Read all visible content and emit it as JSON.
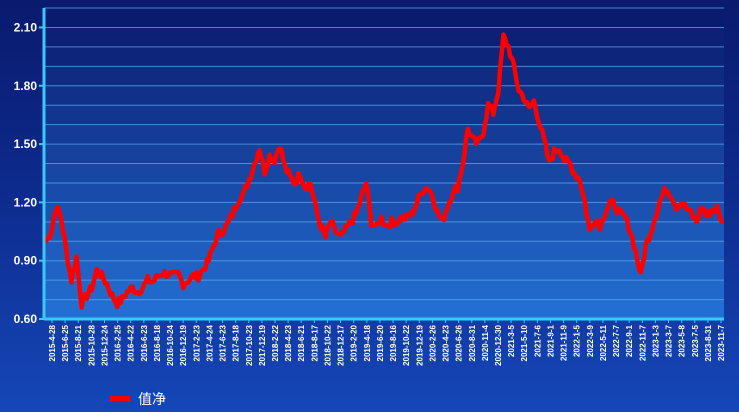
{
  "chart_data": {
    "type": "line",
    "title": "",
    "xlabel": "",
    "ylabel": "",
    "ylim": [
      0.6,
      2.2
    ],
    "yticks": [
      "0.60",
      "0.90",
      "1.20",
      "1.50",
      "1.80",
      "2.10"
    ],
    "xticks": [
      "2015-4-28",
      "2015-6-25",
      "2015-8-21",
      "2015-10-28",
      "2015-12-24",
      "2016-2-25",
      "2016-4-22",
      "2016-6-23",
      "2016-8-18",
      "2016-10-24",
      "2016-12-19",
      "2017-2-23",
      "2017-4-24",
      "2017-6-23",
      "2017-8-18",
      "2017-10-23",
      "2017-12-19",
      "2018-2-22",
      "2018-4-23",
      "2018-6-21",
      "2018-8-17",
      "2018-10-22",
      "2018-12-17",
      "2019-2-20",
      "2019-4-18",
      "2019-6-20",
      "2019-8-16",
      "2019-10-22",
      "2019-12-19",
      "2020-2-26",
      "2020-4-23",
      "2020-6-26",
      "2020-8-31",
      "2020-11-4",
      "2020-12-30",
      "2021-3-5",
      "2021-5-10",
      "2021-7-6",
      "2021-9-1",
      "2021-11-9",
      "2022-1-5",
      "2022-3-9",
      "2022-5-11",
      "2022-7-7",
      "2022-9-1",
      "2022-11-7",
      "2023-1-3",
      "2023-3-7",
      "2023-5-8",
      "2023-7-5",
      "2023-8-31",
      "2023-11-7"
    ],
    "series": [
      {
        "name": "值净",
        "color": "#ff0000",
        "values": [
          1.0,
          1.05,
          1.18,
          1.12,
          0.95,
          0.8,
          0.92,
          0.68,
          0.72,
          0.76,
          0.85,
          0.82,
          0.78,
          0.72,
          0.68,
          0.7,
          0.74,
          0.76,
          0.74,
          0.76,
          0.8,
          0.79,
          0.82,
          0.84,
          0.83,
          0.82,
          0.83,
          0.78,
          0.8,
          0.82,
          0.82,
          0.86,
          0.9,
          0.98,
          1.04,
          1.06,
          1.1,
          1.16,
          1.22,
          1.25,
          1.32,
          1.4,
          1.48,
          1.36,
          1.44,
          1.42,
          1.5,
          1.38,
          1.33,
          1.3,
          1.35,
          1.28,
          1.3,
          1.18,
          1.08,
          1.02,
          1.1,
          1.05,
          1.02,
          1.06,
          1.1,
          1.14,
          1.22,
          1.3,
          1.1,
          1.07,
          1.12,
          1.08,
          1.1,
          1.1,
          1.12,
          1.12,
          1.14,
          1.2,
          1.26,
          1.28,
          1.24,
          1.15,
          1.1,
          1.18,
          1.25,
          1.28,
          1.4,
          1.58,
          1.52,
          1.5,
          1.56,
          1.7,
          1.66,
          1.78,
          2.05,
          2.0,
          1.9,
          1.78,
          1.74,
          1.68,
          1.72,
          1.62,
          1.52,
          1.4,
          1.46,
          1.48,
          1.42,
          1.4,
          1.35,
          1.32,
          1.2,
          1.05,
          1.12,
          1.08,
          1.15,
          1.2,
          1.18,
          1.14,
          1.12,
          1.05,
          0.95,
          0.82,
          0.98,
          1.05,
          1.14,
          1.22,
          1.27,
          1.24,
          1.18,
          1.2,
          1.17,
          1.14,
          1.1,
          1.18,
          1.13,
          1.16,
          1.17,
          1.1
        ]
      }
    ],
    "grid": true,
    "legend_position": "bottom-left"
  }
}
